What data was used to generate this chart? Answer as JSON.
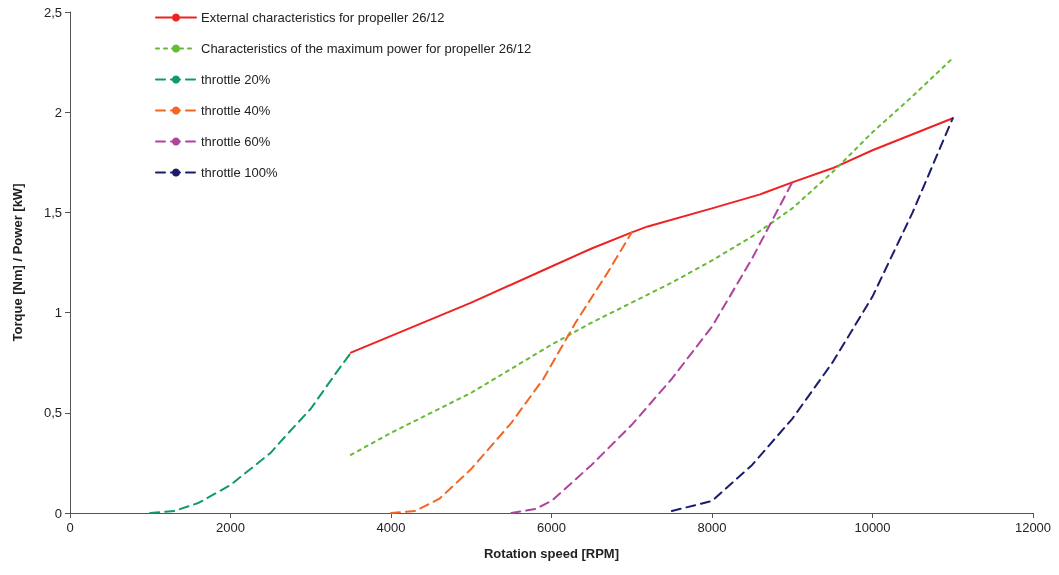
{
  "chart_data": {
    "type": "line",
    "xlabel": "Rotation speed [RPM]",
    "ylabel": "Torque [Nm] / Power [kW]",
    "xlim": [
      0,
      12000
    ],
    "xticks": [
      0,
      2000,
      4000,
      6000,
      8000,
      10000,
      12000
    ],
    "ylim": [
      0,
      2.5
    ],
    "yticks": [
      0,
      {
        "value": 0.5,
        "label": "0,5"
      },
      1,
      {
        "value": 1.5,
        "label": "1,5"
      },
      2,
      {
        "value": 2.5,
        "label": "2,5"
      }
    ],
    "grid": false,
    "legend": "top left",
    "marker": "none",
    "series": [
      {
        "name": "External characteristics for propeller 26/12",
        "color": "#ee2222",
        "line_style": "solid",
        "x": [
          3500,
          5000,
          6000,
          6500,
          7000,
          7200,
          8000,
          8600,
          9000,
          9500,
          10000,
          10500,
          11000
        ],
        "values": [
          0.8,
          1.05,
          1.23,
          1.32,
          1.4,
          1.43,
          1.52,
          1.59,
          1.65,
          1.72,
          1.81,
          1.89,
          1.97
        ]
      },
      {
        "name": "Characteristics of the maximum power for propeller 26/12",
        "color": "#66bb33",
        "line_style": "dotted",
        "x": [
          3500,
          4000,
          5000,
          6000,
          6500,
          7000,
          7500,
          8000,
          8500,
          9000,
          9500,
          10000,
          10500,
          11000
        ],
        "values": [
          0.29,
          0.4,
          0.6,
          0.84,
          0.95,
          1.05,
          1.15,
          1.26,
          1.38,
          1.52,
          1.7,
          1.9,
          2.08,
          2.27
        ]
      },
      {
        "name": "throttle 20%",
        "color": "#119966",
        "line_style": "dashed",
        "x": [
          1000,
          1300,
          1600,
          2000,
          2500,
          2700,
          3000,
          3300,
          3500
        ],
        "values": [
          0,
          0.01,
          0.05,
          0.14,
          0.3,
          0.39,
          0.52,
          0.69,
          0.8
        ]
      },
      {
        "name": "throttle 40%",
        "color": "#f26522",
        "line_style": "dashed",
        "x": [
          4000,
          4300,
          4600,
          5000,
          5500,
          5900,
          6300,
          6700,
          7000
        ],
        "values": [
          0,
          0.01,
          0.07,
          0.22,
          0.45,
          0.67,
          0.95,
          1.2,
          1.4
        ]
      },
      {
        "name": "throttle 60%",
        "color": "#b0449c",
        "line_style": "dashed",
        "x": [
          5500,
          5800,
          6000,
          6500,
          7000,
          7500,
          8000,
          8500,
          9000
        ],
        "values": [
          0,
          0.02,
          0.06,
          0.24,
          0.44,
          0.67,
          0.93,
          1.27,
          1.65
        ]
      },
      {
        "name": "throttle 100%",
        "color": "#1c1c6c",
        "line_style": "dashed",
        "x": [
          7500,
          8000,
          8500,
          9000,
          9500,
          10000,
          10500,
          11000
        ],
        "values": [
          0.01,
          0.06,
          0.24,
          0.47,
          0.75,
          1.08,
          1.5,
          1.97
        ]
      }
    ]
  }
}
